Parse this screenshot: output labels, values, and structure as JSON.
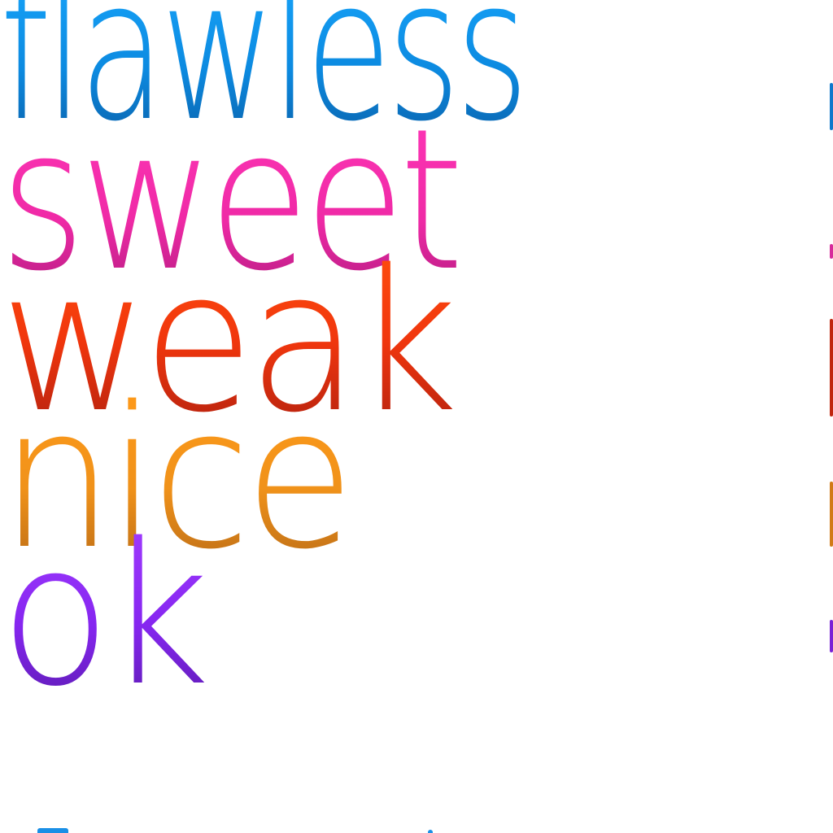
{
  "words": {
    "flawless": "flawless",
    "sweet": "sweet",
    "weak": "weak",
    "nice": "nice",
    "ok": "ok"
  },
  "colors": {
    "flawless": "#0c8ae0",
    "sweet": "#ef2aa6",
    "weak": "#f0360d",
    "nice": "#f0921a",
    "ok": "#8626f0"
  }
}
